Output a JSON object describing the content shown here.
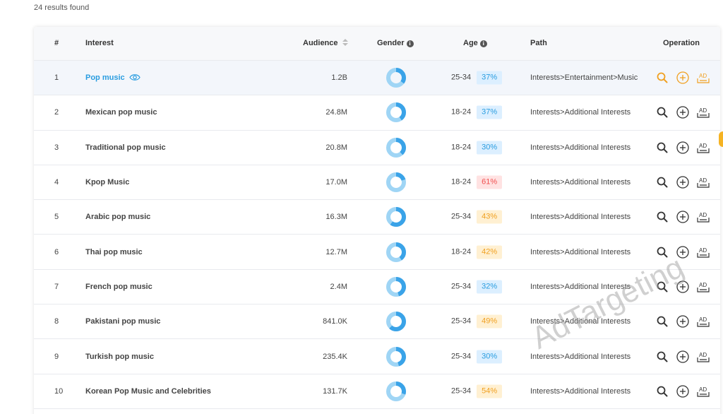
{
  "results_count": "24 results found",
  "header": {
    "num": "#",
    "interest": "Interest",
    "audience": "Audience",
    "gender": "Gender",
    "age": "Age",
    "path": "Path",
    "operation": "Operation",
    "info_glyph": "i"
  },
  "colors": {
    "link_blue": "#2a9de0",
    "highlight_orange": "#f0a020",
    "donut_light": "#9fd5f5",
    "donut_dark": "#3aa3e8",
    "badge_blue_bg": "#dcefff",
    "badge_orange_bg": "#fff0d2",
    "badge_red_bg": "#ffe2e2"
  },
  "rows": [
    {
      "num": "1",
      "interest": "Pop music",
      "audience": "1.2B",
      "age_range": "25-34",
      "age_pct": "37%",
      "badge": "blue",
      "male_share": 0.35,
      "path": "Interests>Entertainment>Music",
      "highlighted": true
    },
    {
      "num": "2",
      "interest": "Mexican pop music",
      "audience": "24.8M",
      "age_range": "18-24",
      "age_pct": "37%",
      "badge": "blue",
      "male_share": 0.4,
      "path": "Interests>Additional Interests"
    },
    {
      "num": "3",
      "interest": "Traditional pop music",
      "audience": "20.8M",
      "age_range": "18-24",
      "age_pct": "30%",
      "badge": "blue",
      "male_share": 0.38,
      "path": "Interests>Additional Interests"
    },
    {
      "num": "4",
      "interest": "Kpop Music",
      "audience": "17.0M",
      "age_range": "18-24",
      "age_pct": "61%",
      "badge": "red",
      "male_share": 0.2,
      "path": "Interests>Additional Interests"
    },
    {
      "num": "5",
      "interest": "Arabic pop music",
      "audience": "16.3M",
      "age_range": "25-34",
      "age_pct": "43%",
      "badge": "orange",
      "male_share": 0.6,
      "path": "Interests>Additional Interests"
    },
    {
      "num": "6",
      "interest": "Thai pop music",
      "audience": "12.7M",
      "age_range": "18-24",
      "age_pct": "42%",
      "badge": "orange",
      "male_share": 0.4,
      "path": "Interests>Additional Interests"
    },
    {
      "num": "7",
      "interest": "French pop music",
      "audience": "2.4M",
      "age_range": "25-34",
      "age_pct": "32%",
      "badge": "blue",
      "male_share": 0.45,
      "path": "Interests>Additional Interests"
    },
    {
      "num": "8",
      "interest": "Pakistani pop music",
      "audience": "841.0K",
      "age_range": "25-34",
      "age_pct": "49%",
      "badge": "orange",
      "male_share": 0.62,
      "path": "Interests>Additional Interests"
    },
    {
      "num": "9",
      "interest": "Turkish pop music",
      "audience": "235.4K",
      "age_range": "25-34",
      "age_pct": "30%",
      "badge": "blue",
      "male_share": 0.45,
      "path": "Interests>Additional Interests"
    },
    {
      "num": "10",
      "interest": "Korean Pop Music and Celebrities",
      "audience": "131.7K",
      "age_range": "25-34",
      "age_pct": "54%",
      "badge": "orange",
      "male_share": 0.3,
      "path": "Interests>Additional Interests"
    }
  ],
  "icons": {
    "eye": "eye-icon",
    "search": "search-icon",
    "add": "plus-circle-icon",
    "ad": "ad-icon"
  },
  "ad_icon_text": "AD",
  "watermark": "AdTargeting"
}
